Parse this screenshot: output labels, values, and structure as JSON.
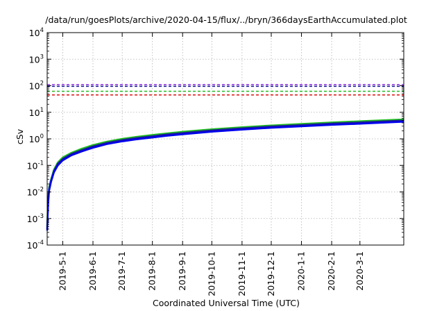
{
  "chart_data": {
    "type": "line",
    "title": "/data/run/goesPlots/archive/2020-04-15/flux/../bryn/366daysEarthAccumulated.plot",
    "xlabel": "Coordinated Universal Time (UTC)",
    "ylabel": "cSv",
    "y_scale": "log",
    "ylim": [
      0.0001,
      10000
    ],
    "xlim": [
      "2019-04-15",
      "2020-04-15"
    ],
    "grid": true,
    "y_ticks": [
      {
        "base": "10",
        "exp": "-4"
      },
      {
        "base": "10",
        "exp": "-3"
      },
      {
        "base": "10",
        "exp": "-2"
      },
      {
        "base": "10",
        "exp": "-1"
      },
      {
        "base": "10",
        "exp": "0"
      },
      {
        "base": "10",
        "exp": "1"
      },
      {
        "base": "10",
        "exp": "2"
      },
      {
        "base": "10",
        "exp": "3"
      },
      {
        "base": "10",
        "exp": "4"
      }
    ],
    "x_ticks": [
      "2019-5-1",
      "2019-6-1",
      "2019-7-1",
      "2019-8-1",
      "2019-9-1",
      "2019-10-1",
      "2019-11-1",
      "2019-12-1",
      "2020-1-1",
      "2020-2-1",
      "2020-3-1"
    ],
    "reference_lines": [
      {
        "value": 110,
        "color": "#8a2be2",
        "style": "dashed"
      },
      {
        "value": 95,
        "color": "#1a1a9a",
        "style": "dashed"
      },
      {
        "value": 62,
        "color": "#22bb22",
        "style": "dashed"
      },
      {
        "value": 45,
        "color": "#dd1111",
        "style": "dashed"
      }
    ],
    "series": [
      {
        "color": "#22bb22",
        "width": 2.5,
        "x": [
          "2019-04-15",
          "2019-04-16",
          "2019-04-17",
          "2019-04-19",
          "2019-04-22",
          "2019-04-26",
          "2019-05-01",
          "2019-05-10",
          "2019-05-20",
          "2019-06-01",
          "2019-06-15",
          "2019-07-01",
          "2019-07-15",
          "2019-08-01",
          "2019-08-15",
          "2019-09-01",
          "2019-10-01",
          "2019-11-01",
          "2019-12-01",
          "2020-01-01",
          "2020-02-01",
          "2020-03-01",
          "2020-04-15"
        ],
        "values": [
          0.0005,
          0.005,
          0.015,
          0.03,
          0.07,
          0.13,
          0.2,
          0.3,
          0.42,
          0.58,
          0.78,
          1.0,
          1.18,
          1.4,
          1.6,
          1.85,
          2.3,
          2.75,
          3.2,
          3.65,
          4.15,
          4.6,
          5.4
        ]
      },
      {
        "color": "#1a1a9a",
        "width": 2.5,
        "x": [
          "2019-04-15",
          "2019-04-16",
          "2019-04-17",
          "2019-04-19",
          "2019-04-22",
          "2019-04-26",
          "2019-05-01",
          "2019-05-10",
          "2019-05-20",
          "2019-06-01",
          "2019-06-15",
          "2019-07-01",
          "2019-07-15",
          "2019-08-01",
          "2019-08-15",
          "2019-09-01",
          "2019-10-01",
          "2019-11-01",
          "2019-12-01",
          "2020-01-01",
          "2020-02-01",
          "2020-03-01",
          "2020-04-15"
        ],
        "values": [
          0.0004,
          0.004,
          0.013,
          0.027,
          0.062,
          0.115,
          0.175,
          0.27,
          0.37,
          0.52,
          0.7,
          0.9,
          1.06,
          1.26,
          1.44,
          1.66,
          2.07,
          2.48,
          2.9,
          3.3,
          3.75,
          4.15,
          4.9
        ]
      },
      {
        "color": "#0000ee",
        "width": 2.5,
        "x": [
          "2019-04-15",
          "2019-04-16",
          "2019-04-17",
          "2019-04-19",
          "2019-04-22",
          "2019-04-26",
          "2019-05-01",
          "2019-05-10",
          "2019-05-20",
          "2019-06-01",
          "2019-06-15",
          "2019-07-01",
          "2019-07-15",
          "2019-08-01",
          "2019-08-15",
          "2019-09-01",
          "2019-10-01",
          "2019-11-01",
          "2019-12-01",
          "2020-01-01",
          "2020-02-01",
          "2020-03-01",
          "2020-04-15"
        ],
        "values": [
          0.00035,
          0.0035,
          0.011,
          0.024,
          0.055,
          0.1,
          0.155,
          0.24,
          0.33,
          0.46,
          0.63,
          0.8,
          0.95,
          1.12,
          1.29,
          1.48,
          1.85,
          2.22,
          2.6,
          2.95,
          3.35,
          3.7,
          4.4
        ]
      }
    ]
  }
}
